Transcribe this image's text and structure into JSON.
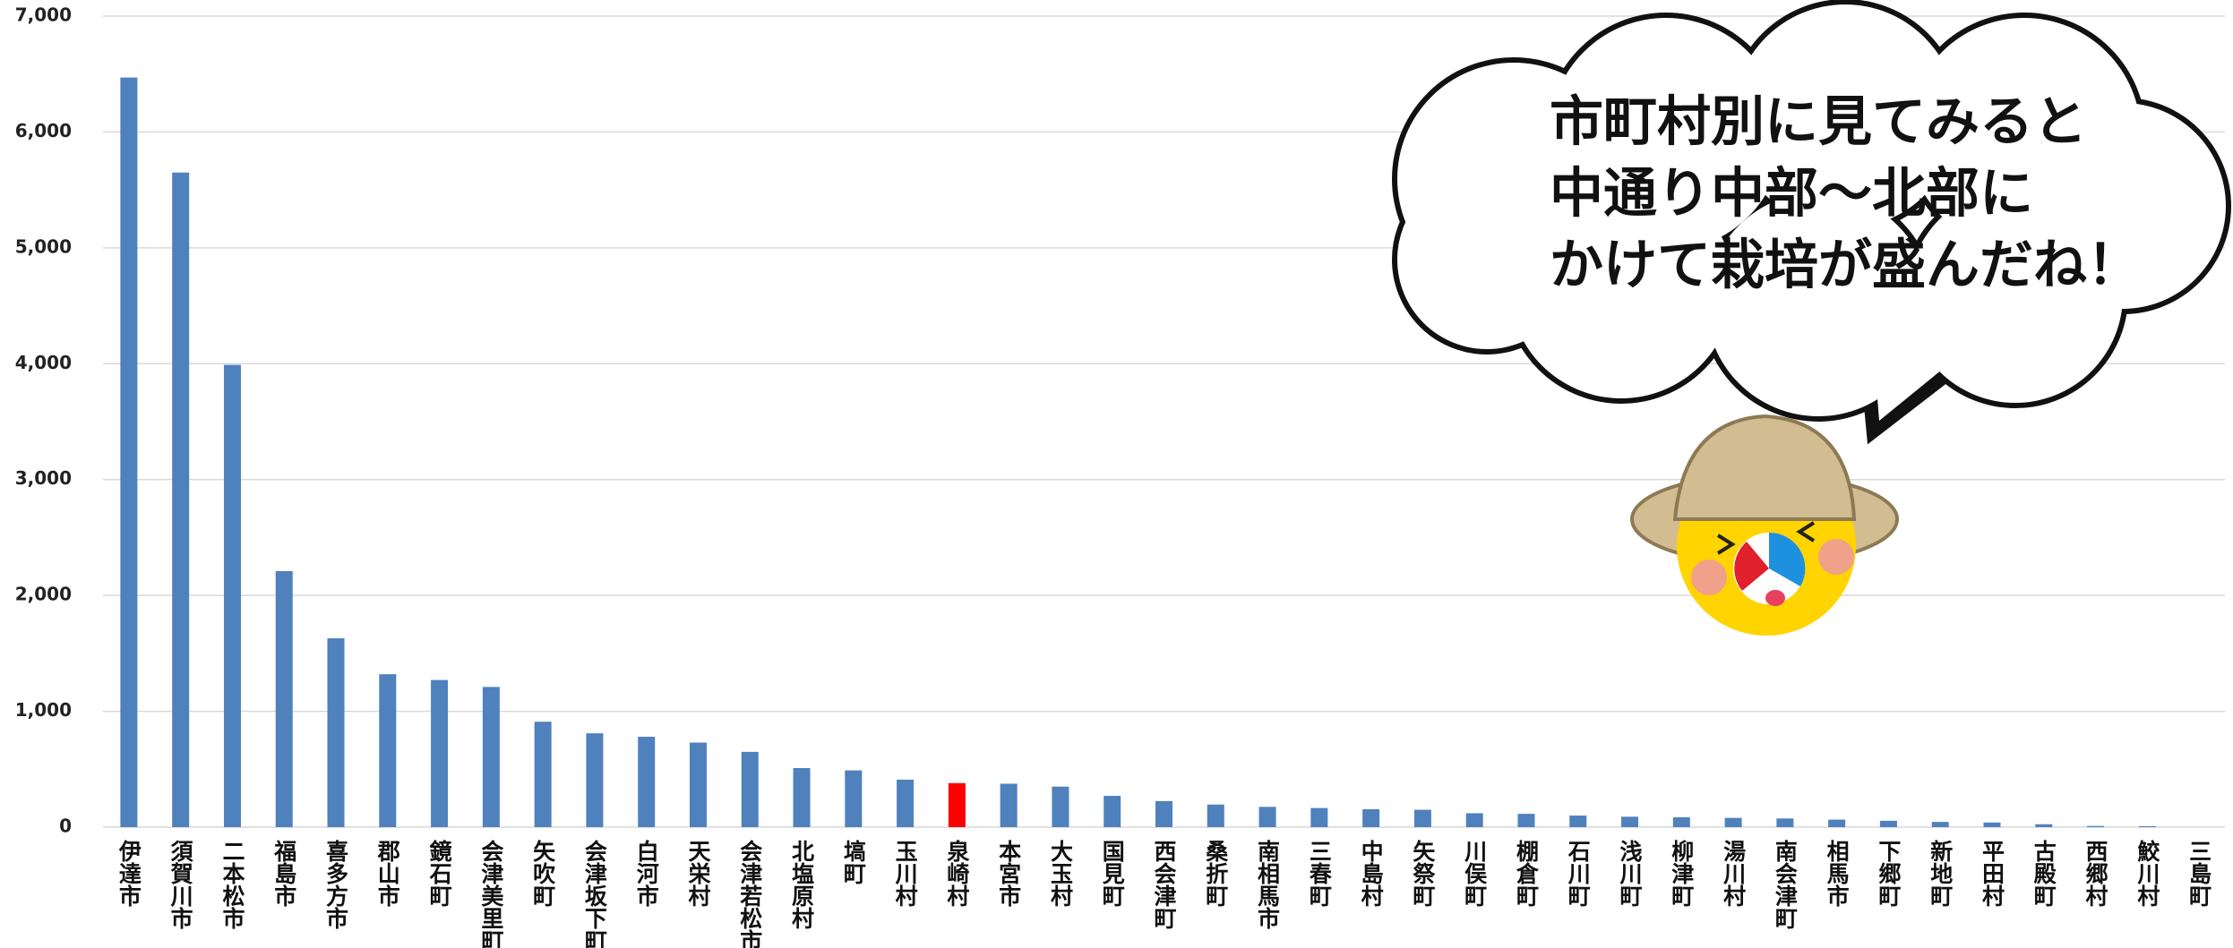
{
  "chart_data": {
    "type": "bar",
    "categories": [
      "伊達市",
      "須賀川市",
      "二本松市",
      "福島市",
      "喜多方市",
      "郡山市",
      "鏡石町",
      "会津美里町",
      "矢吹町",
      "会津坂下町",
      "白河市",
      "天栄村",
      "会津若松市",
      "北塩原村",
      "塙町",
      "玉川村",
      "泉崎村",
      "本宮市",
      "大玉村",
      "国見町",
      "西会津町",
      "桑折町",
      "南相馬市",
      "三春町",
      "中島村",
      "矢祭町",
      "川俣町",
      "棚倉町",
      "石川町",
      "浅川町",
      "柳津町",
      "湯川村",
      "南会津町",
      "相馬市",
      "下郷町",
      "新地町",
      "平田村",
      "古殿町",
      "西郷村",
      "鮫川村",
      "三島町"
    ],
    "values": [
      6470,
      5650,
      3990,
      2210,
      1630,
      1320,
      1270,
      1210,
      910,
      810,
      780,
      730,
      650,
      510,
      490,
      410,
      380,
      375,
      350,
      270,
      225,
      195,
      175,
      165,
      155,
      150,
      120,
      115,
      100,
      90,
      85,
      80,
      75,
      65,
      55,
      45,
      40,
      25,
      10,
      8,
      0
    ],
    "colors": [
      "#4f81bd",
      "#4f81bd",
      "#4f81bd",
      "#4f81bd",
      "#4f81bd",
      "#4f81bd",
      "#4f81bd",
      "#4f81bd",
      "#4f81bd",
      "#4f81bd",
      "#4f81bd",
      "#4f81bd",
      "#4f81bd",
      "#4f81bd",
      "#4f81bd",
      "#4f81bd",
      "#ff0000",
      "#4f81bd",
      "#4f81bd",
      "#4f81bd",
      "#4f81bd",
      "#4f81bd",
      "#4f81bd",
      "#4f81bd",
      "#4f81bd",
      "#4f81bd",
      "#4f81bd",
      "#4f81bd",
      "#4f81bd",
      "#4f81bd",
      "#4f81bd",
      "#4f81bd",
      "#4f81bd",
      "#4f81bd",
      "#4f81bd",
      "#4f81bd",
      "#4f81bd",
      "#4f81bd",
      "#4f81bd",
      "#4f81bd",
      "#4f81bd"
    ],
    "ylim": [
      0,
      7000
    ],
    "yticks": [
      0,
      {
        "value": 1000,
        "label": "1,000"
      },
      {
        "value": 2000,
        "label": "2,000"
      },
      {
        "value": 3000,
        "label": "3,000"
      },
      {
        "value": 4000,
        "label": "4,000"
      },
      {
        "value": 5000,
        "label": "5,000"
      },
      {
        "value": 6000,
        "label": "6,000"
      },
      {
        "value": 7000,
        "label": "7,000"
      }
    ],
    "grid": true,
    "annotations": [
      "市町村別に見てみると",
      "中通り中部～北部に",
      "かけて栽培が盛んだね！"
    ]
  }
}
